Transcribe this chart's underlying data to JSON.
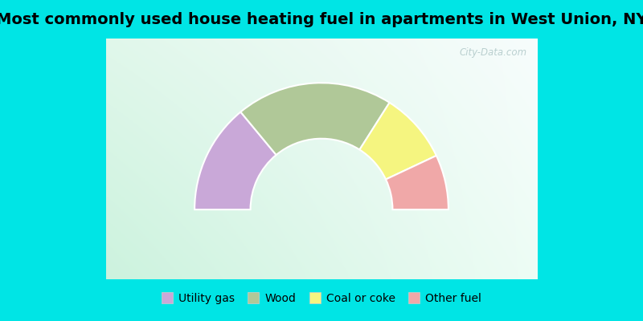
{
  "title": "Most commonly used house heating fuel in apartments in West Union, NY",
  "title_fontsize": 14,
  "segments": [
    {
      "label": "Utility gas",
      "value": 28,
      "color": "#c9a8d8"
    },
    {
      "label": "Wood",
      "value": 40,
      "color": "#b0c898"
    },
    {
      "label": "Coal or coke",
      "value": 18,
      "color": "#f5f580"
    },
    {
      "label": "Other fuel",
      "value": 14,
      "color": "#f0a8a8"
    }
  ],
  "bg_cyan": "#00e5e5",
  "watermark": "City-Data.com",
  "grad_corners": {
    "tl": [
      0.88,
      0.97,
      0.92
    ],
    "tr": [
      0.97,
      0.99,
      0.99
    ],
    "bl": [
      0.8,
      0.95,
      0.87
    ],
    "br": [
      0.93,
      0.99,
      0.96
    ]
  },
  "outer_r": 1.0,
  "inner_r": 0.56
}
